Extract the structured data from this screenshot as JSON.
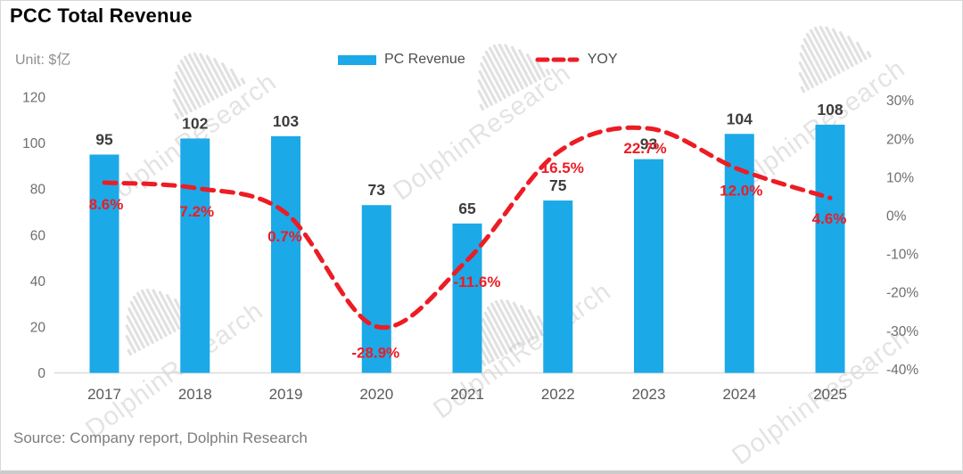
{
  "header": {
    "title": "PCC Total Revenue",
    "unit": "Unit: $亿"
  },
  "legend": {
    "bar_label": "PC Revenue",
    "line_label": "YOY"
  },
  "source": "Source: Company report, Dolphin Research",
  "watermark": "DolphinResearch",
  "colors": {
    "bar": "#1BA9E8",
    "line": "#ED1C24",
    "axis_text": "#6E6E6E",
    "bar_label": "#3D3D3D",
    "category_text": "#5A5A5A",
    "axis_line": "#D9D9D9",
    "watermark": "#C9C9C9"
  },
  "chart_data": {
    "type": "bar",
    "title": "PCC Total Revenue",
    "unit": "$亿",
    "categories": [
      "2017",
      "2018",
      "2019",
      "2020",
      "2021",
      "2022",
      "2023",
      "2024",
      "2025"
    ],
    "series": [
      {
        "name": "PC Revenue",
        "type": "bar",
        "axis": "left",
        "values": [
          95,
          102,
          103,
          73,
          65,
          75,
          93,
          104,
          108
        ]
      },
      {
        "name": "YOY",
        "type": "line",
        "axis": "right",
        "line_style": "dashed",
        "values": [
          8.6,
          7.2,
          0.7,
          -28.9,
          -11.6,
          16.5,
          22.7,
          12.0,
          4.6
        ],
        "labels": [
          "8.6%",
          "7.2%",
          "0.7%",
          "-28.9%",
          "-11.6%",
          "16.5%",
          "22.7%",
          "12.0%",
          "4.6%"
        ]
      }
    ],
    "left_axis": {
      "min": 0,
      "max": 120,
      "ticks": [
        0,
        20,
        40,
        60,
        80,
        100,
        120
      ]
    },
    "right_axis": {
      "min": -40,
      "max": 30,
      "ticks": [
        "30%",
        "20%",
        "10%",
        "0%",
        "-10%",
        "-20%",
        "-30%",
        "-40%"
      ]
    },
    "grid": false,
    "legend_position": "top-center",
    "source": "Source: Company report, Dolphin Research"
  }
}
